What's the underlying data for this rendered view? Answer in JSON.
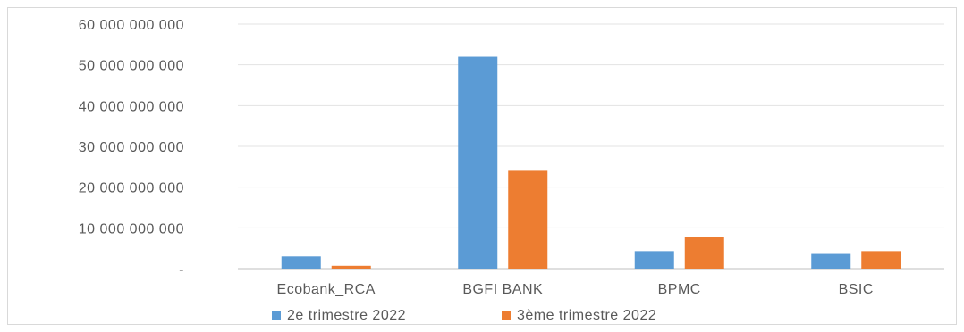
{
  "chart_data": {
    "type": "bar",
    "title": "",
    "xlabel": "",
    "ylabel": "",
    "categories": [
      "Ecobank_RCA",
      "BGFI BANK",
      "BPMC",
      "BSIC"
    ],
    "series": [
      {
        "name": "2e trimestre 2022",
        "color": "#5b9bd5",
        "values": [
          3000000000,
          52000000000,
          4300000000,
          3600000000
        ]
      },
      {
        "name": "3ème trimestre 2022",
        "color": "#ed7d31",
        "values": [
          700000000,
          24000000000,
          7800000000,
          4300000000
        ]
      }
    ],
    "ylim": [
      0,
      60000000000
    ],
    "yticks": [
      {
        "value": 0,
        "label": "-"
      },
      {
        "value": 10000000000,
        "label": "10 000 000 000"
      },
      {
        "value": 20000000000,
        "label": "20 000 000 000"
      },
      {
        "value": 30000000000,
        "label": "30 000 000 000"
      },
      {
        "value": 40000000000,
        "label": "40 000 000 000"
      },
      {
        "value": 50000000000,
        "label": "50 000 000 000"
      },
      {
        "value": 60000000000,
        "label": "60 000 000 000"
      }
    ],
    "grid": true,
    "legend": "bottom"
  }
}
